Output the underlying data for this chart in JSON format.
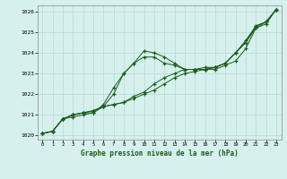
{
  "title": "Graphe pression niveau de la mer (hPa)",
  "background_color": "#d6f0ee",
  "grid_color": "#b8d8d0",
  "line_color": "#1a5c1a",
  "marker_color": "#1a5c1a",
  "xlim": [
    -0.5,
    23.5
  ],
  "ylim": [
    1019.8,
    1026.3
  ],
  "yticks": [
    1020,
    1021,
    1022,
    1023,
    1024,
    1025,
    1026
  ],
  "xticks": [
    0,
    1,
    2,
    3,
    4,
    5,
    6,
    7,
    8,
    9,
    10,
    11,
    12,
    13,
    14,
    15,
    16,
    17,
    18,
    19,
    20,
    21,
    22,
    23
  ],
  "series": [
    [
      1020.1,
      1020.2,
      1020.8,
      1020.9,
      1021.0,
      1021.1,
      1021.5,
      1022.3,
      1023.0,
      1023.5,
      1024.1,
      1024.0,
      1023.8,
      1023.5,
      1023.2,
      1023.2,
      1023.2,
      1023.3,
      1023.5,
      1024.0,
      1024.5,
      1025.2,
      1025.5,
      1026.1
    ],
    [
      1020.1,
      1020.2,
      1020.8,
      1021.0,
      1021.1,
      1021.1,
      1021.4,
      1021.5,
      1021.6,
      1021.8,
      1022.0,
      1022.2,
      1022.5,
      1022.8,
      1023.0,
      1023.1,
      1023.2,
      1023.2,
      1023.4,
      1023.6,
      1024.2,
      1025.2,
      1025.4,
      1026.1
    ],
    [
      1020.1,
      1020.2,
      1020.8,
      1021.0,
      1021.1,
      1021.2,
      1021.4,
      1021.5,
      1021.6,
      1021.9,
      1022.1,
      1022.5,
      1022.8,
      1023.0,
      1023.2,
      1023.2,
      1023.3,
      1023.3,
      1023.5,
      1024.0,
      1024.6,
      1025.3,
      1025.5,
      1026.1
    ],
    [
      1020.1,
      1020.2,
      1020.8,
      1021.0,
      1021.1,
      1021.2,
      1021.4,
      1022.0,
      1023.0,
      1023.5,
      1023.8,
      1023.8,
      1023.5,
      1023.4,
      1023.2,
      1023.2,
      1023.2,
      1023.3,
      1023.5,
      1024.0,
      1024.5,
      1025.3,
      1025.5,
      1026.1
    ]
  ]
}
